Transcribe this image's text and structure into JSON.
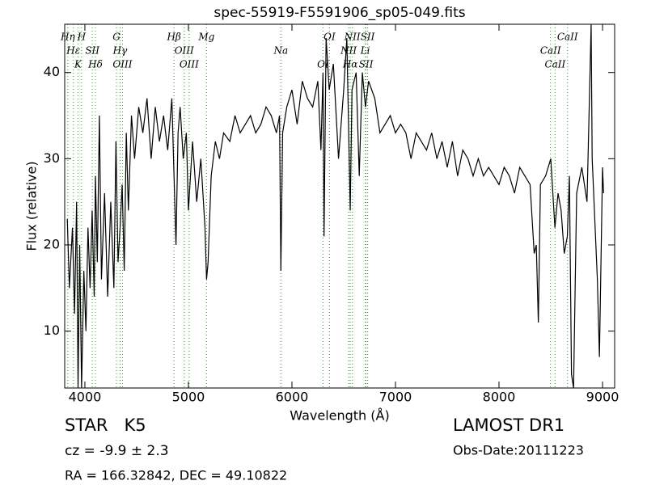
{
  "chart_data": {
    "type": "line",
    "title": "spec-55919-F5591906_sp05-049.fits",
    "xlabel": "Wavelength (Å)",
    "ylabel": "Flux (relative)",
    "xlim": [
      3805,
      9117
    ],
    "ylim": [
      3.4,
      45.6
    ],
    "xticks": [
      4000,
      5000,
      6000,
      7000,
      8000,
      9000
    ],
    "yticks": [
      10,
      20,
      30,
      40
    ],
    "grid": false,
    "x": [
      3830,
      3850,
      3880,
      3900,
      3920,
      3934,
      3950,
      3968,
      3990,
      4010,
      4030,
      4050,
      4070,
      4090,
      4102,
      4120,
      4140,
      4160,
      4190,
      4220,
      4250,
      4280,
      4300,
      4320,
      4340,
      4360,
      4380,
      4400,
      4420,
      4450,
      4480,
      4520,
      4560,
      4600,
      4640,
      4680,
      4720,
      4760,
      4800,
      4840,
      4861,
      4880,
      4900,
      4920,
      4950,
      4980,
      5000,
      5040,
      5080,
      5120,
      5160,
      5175,
      5190,
      5220,
      5260,
      5300,
      5340,
      5400,
      5450,
      5500,
      5550,
      5600,
      5650,
      5700,
      5750,
      5800,
      5850,
      5880,
      5893,
      5910,
      5950,
      6000,
      6050,
      6100,
      6150,
      6200,
      6250,
      6280,
      6300,
      6310,
      6330,
      6360,
      6400,
      6450,
      6500,
      6530,
      6563,
      6580,
      6620,
      6650,
      6680,
      6710,
      6740,
      6800,
      6850,
      6900,
      6950,
      7000,
      7050,
      7100,
      7150,
      7200,
      7250,
      7300,
      7350,
      7400,
      7450,
      7500,
      7550,
      7600,
      7650,
      7700,
      7750,
      7800,
      7850,
      7900,
      7950,
      8000,
      8050,
      8100,
      8150,
      8200,
      8250,
      8300,
      8340,
      8360,
      8380,
      8400,
      8450,
      8500,
      8540,
      8570,
      8600,
      8630,
      8660,
      8680,
      8700,
      8720,
      8750,
      8800,
      8850,
      8890,
      8900,
      8950,
      8970,
      9000,
      9010
    ],
    "series": [
      {
        "name": "flux",
        "color": "#000000",
        "values": [
          23,
          15,
          22,
          12,
          25,
          3.4,
          20,
          3.4,
          17,
          10,
          22,
          15,
          24,
          14,
          28,
          18,
          35,
          16,
          26,
          14,
          25,
          15,
          32,
          18,
          22,
          27,
          17,
          33,
          24,
          35,
          30,
          36,
          33,
          37,
          30,
          36,
          32,
          35,
          31,
          37,
          28,
          20,
          33,
          36,
          30,
          33,
          24,
          32,
          25,
          30,
          22,
          16,
          18,
          28,
          32,
          30,
          33,
          32,
          35,
          33,
          34,
          35,
          33,
          34,
          36,
          35,
          33,
          35,
          17,
          33,
          36,
          38,
          34,
          39,
          37,
          36,
          39,
          31,
          40,
          21,
          44,
          38,
          41,
          30,
          38,
          44,
          24,
          38,
          40,
          28,
          40,
          36,
          39,
          37,
          33,
          34,
          35,
          33,
          34,
          33,
          30,
          33,
          32,
          31,
          33,
          30,
          32,
          29,
          32,
          28,
          31,
          30,
          28,
          30,
          28,
          29,
          28,
          27,
          29,
          28,
          26,
          29,
          28,
          27,
          19,
          20,
          11,
          27,
          28,
          30,
          22,
          26,
          24,
          19,
          21,
          28,
          5,
          3.4,
          26,
          29,
          25,
          45.6,
          30,
          16,
          7,
          29,
          26
        ]
      }
    ],
    "line_color": "#2ca02c",
    "spectral_lines": [
      {
        "label": "Hη",
        "x": 3835
      },
      {
        "label": "Hε",
        "x": 3889
      },
      {
        "label": "K",
        "x": 3934
      },
      {
        "label": "H",
        "x": 3968
      },
      {
        "label": "SII",
        "x": 4072
      },
      {
        "label": "Hδ",
        "x": 4102
      },
      {
        "label": "G",
        "x": 4305
      },
      {
        "label": "Hγ",
        "x": 4340
      },
      {
        "label": "OIII",
        "x": 4363
      },
      {
        "label": "Hβ",
        "x": 4861
      },
      {
        "label": "OIII",
        "x": 4959
      },
      {
        "label": "OIII",
        "x": 5007
      },
      {
        "label": "Mg",
        "x": 5175
      },
      {
        "label": "Na",
        "x": 5893
      },
      {
        "label": "OI",
        "x": 6300
      },
      {
        "label": "OI",
        "x": 6363
      },
      {
        "label": "NII",
        "x": 6548
      },
      {
        "label": "Hα",
        "x": 6563
      },
      {
        "label": "NII",
        "x": 6583
      },
      {
        "label": "Li",
        "x": 6708
      },
      {
        "label": "SII",
        "x": 6716
      },
      {
        "label": "SII",
        "x": 6731
      },
      {
        "label": "CaII",
        "x": 8498
      },
      {
        "label": "CaII",
        "x": 8542
      },
      {
        "label": "CaII",
        "x": 8662
      }
    ]
  },
  "info": {
    "object_class": "STAR   K5",
    "redshift": "cz = -9.9 ± 2.3",
    "coordinates": "RA = 166.32842, DEC = 49.10822",
    "survey": "LAMOST DR1",
    "obs_date": "Obs-Date:20111223"
  }
}
